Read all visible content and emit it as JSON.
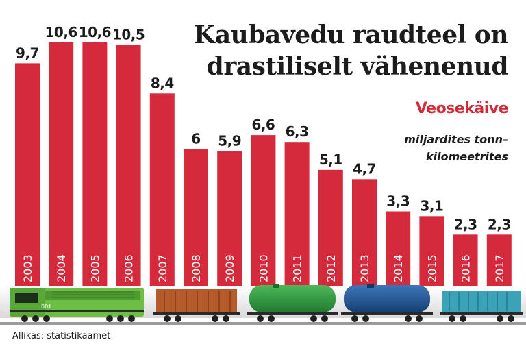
{
  "chart_data": {
    "type": "bar",
    "title": "Kaubavedu raudteel on drastiliselt vähenenud",
    "series": [
      {
        "name": "Veosekäive",
        "values": [
          9.7,
          10.6,
          10.6,
          10.5,
          8.4,
          6,
          5.9,
          6.6,
          6.3,
          5.1,
          4.7,
          3.3,
          3.1,
          2.3,
          2.3
        ]
      }
    ],
    "categories": [
      "2003",
      "2004",
      "2005",
      "2006",
      "2007",
      "2008",
      "2009",
      "2010",
      "2011",
      "2012",
      "2013",
      "2014",
      "2015",
      "2016",
      "2017"
    ],
    "value_labels": [
      "9,7",
      "10,6",
      "10,6",
      "10,5",
      "8,4",
      "6",
      "5,9",
      "6,6",
      "6,3",
      "5,1",
      "4,7",
      "3,3",
      "3,1",
      "2,3",
      "2,3"
    ],
    "unit": "miljardites tonn–kilomeetrites",
    "unit_lines": [
      "miljardites tonn–",
      "kilomeetrites"
    ],
    "ylim": [
      0,
      11
    ],
    "grid": false,
    "legend": "none",
    "bar_color": "#d42a3c",
    "label_color": "#1c1c1c",
    "year_label_color": "#ffffff"
  },
  "header": {
    "title_line1": "Kaubavedu raudteel on",
    "title_line2": "drastiliselt vähenenud",
    "series_name": "Veosekäive"
  },
  "locomotive_number": "001",
  "source": "Allikas: statistikaamet",
  "train": {
    "car_colors": [
      "#6dbe45",
      "#b55a2b",
      "#2e8b3a",
      "#1f4f8a",
      "#3aa3b8"
    ],
    "car_types": [
      "locomotive",
      "boxcar",
      "tank-car",
      "tank-car",
      "container-car"
    ]
  }
}
